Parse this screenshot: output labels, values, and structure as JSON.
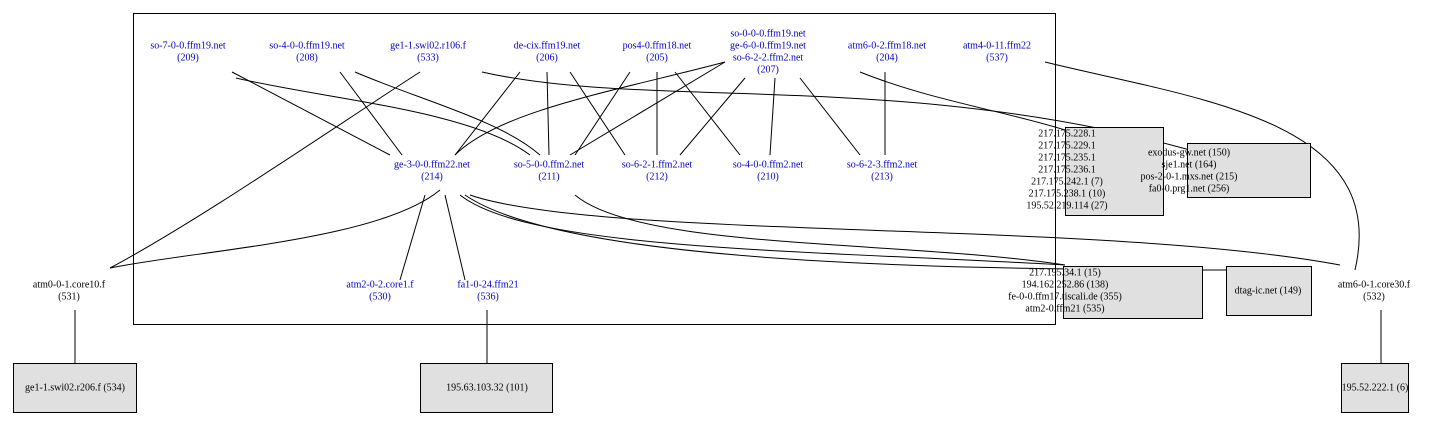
{
  "nodes": [
    {
      "lines": [
        "so-7-0-0.ffm19.net",
        "(209)"
      ]
    },
    {
      "lines": [
        "so-4-0-0.ffm19.net",
        "(208)"
      ]
    },
    {
      "lines": [
        "ge1-1.swi02.r106.f",
        "(533)"
      ]
    },
    {
      "lines": [
        "de-cix.ffm19.net",
        "(206)"
      ]
    },
    {
      "lines": [
        "pos4-0.ffm18.net",
        "(205)"
      ]
    },
    {
      "lines": [
        "so-0-0-0.ffm19.net",
        "ge-6-0-0.ffm19.net",
        "so-6-2-2.ffm2.net",
        "(207)"
      ]
    },
    {
      "lines": [
        "atm6-0-2.ffm18.net",
        "(204)"
      ]
    },
    {
      "lines": [
        "atm4-0-11.ffm22",
        "(537)"
      ]
    },
    {
      "lines": [
        "ge-3-0-0.ffm22.net",
        "(214)"
      ]
    },
    {
      "lines": [
        "so-5-0-0.ffm2.net",
        "(211)"
      ]
    },
    {
      "lines": [
        "so-6-2-1.ffm2.net",
        "(212)"
      ]
    },
    {
      "lines": [
        "so-4-0-0.ffm2.net",
        "(210)"
      ]
    },
    {
      "lines": [
        "so-6-2-3.ffm2.net",
        "(213)"
      ]
    },
    {
      "lines": [
        "atm2-0-2.core1.f",
        "(530)"
      ]
    },
    {
      "lines": [
        "fa1-0-24.ffm21",
        "(536)"
      ]
    },
    {
      "lines": [
        "atm0-0-1.core10.f",
        "(531)"
      ]
    },
    {
      "lines": [
        "atm6-0-1.core30.f",
        "(532)"
      ]
    }
  ],
  "boxes": [
    {
      "lines": [
        "217.175.228.1",
        "217.175.229.1",
        "217.175.235.1",
        "217.175.236.1",
        "217.175.242.1 (7)",
        "217.175.238.1 (10)",
        "195.52.219.114 (27)"
      ]
    },
    {
      "lines": [
        "exodus-gw.net (150)",
        "sje1.net (164)",
        "pos-2-0-1.mxs.net (215)",
        "fa0-0.prg1.net (256)"
      ]
    },
    {
      "lines": [
        "217.195.34.1 (15)",
        "194.162.252.86 (138)",
        "fe-0-0.ffm17.tiscali.de (355)",
        "atm2-0.ffm21 (535)"
      ]
    },
    {
      "lines": [
        "dtag-ic.net (149)"
      ]
    },
    {
      "lines": [
        "ge1-1.swi02.r206.f (534)"
      ]
    },
    {
      "lines": [
        "195.63.103.32 (101)"
      ]
    },
    {
      "lines": [
        "195.52.222.1 (6)"
      ]
    }
  ]
}
